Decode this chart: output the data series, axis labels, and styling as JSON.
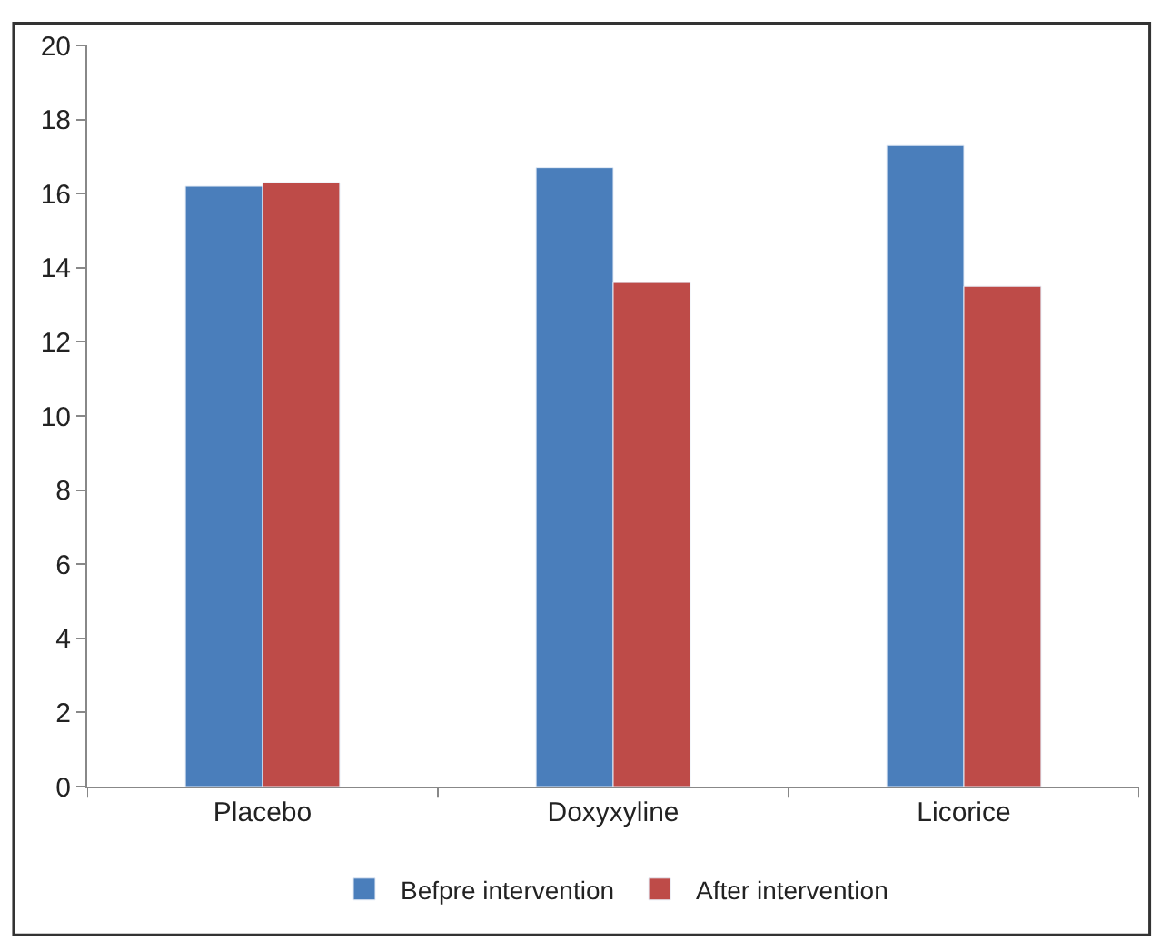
{
  "chart_data": {
    "type": "bar",
    "categories": [
      "Placebo",
      "Doxyxyline",
      "Licorice"
    ],
    "series": [
      {
        "name": "Befpre intervention",
        "color": "#4a7ebb",
        "values": [
          16.2,
          16.7,
          17.3
        ]
      },
      {
        "name": "After intervention",
        "color": "#be4b48",
        "values": [
          16.3,
          13.6,
          13.5
        ]
      }
    ],
    "ylim": [
      0,
      20
    ],
    "yticks": [
      0,
      2,
      4,
      6,
      8,
      10,
      12,
      14,
      16,
      18,
      20
    ],
    "legend": "bottom"
  }
}
